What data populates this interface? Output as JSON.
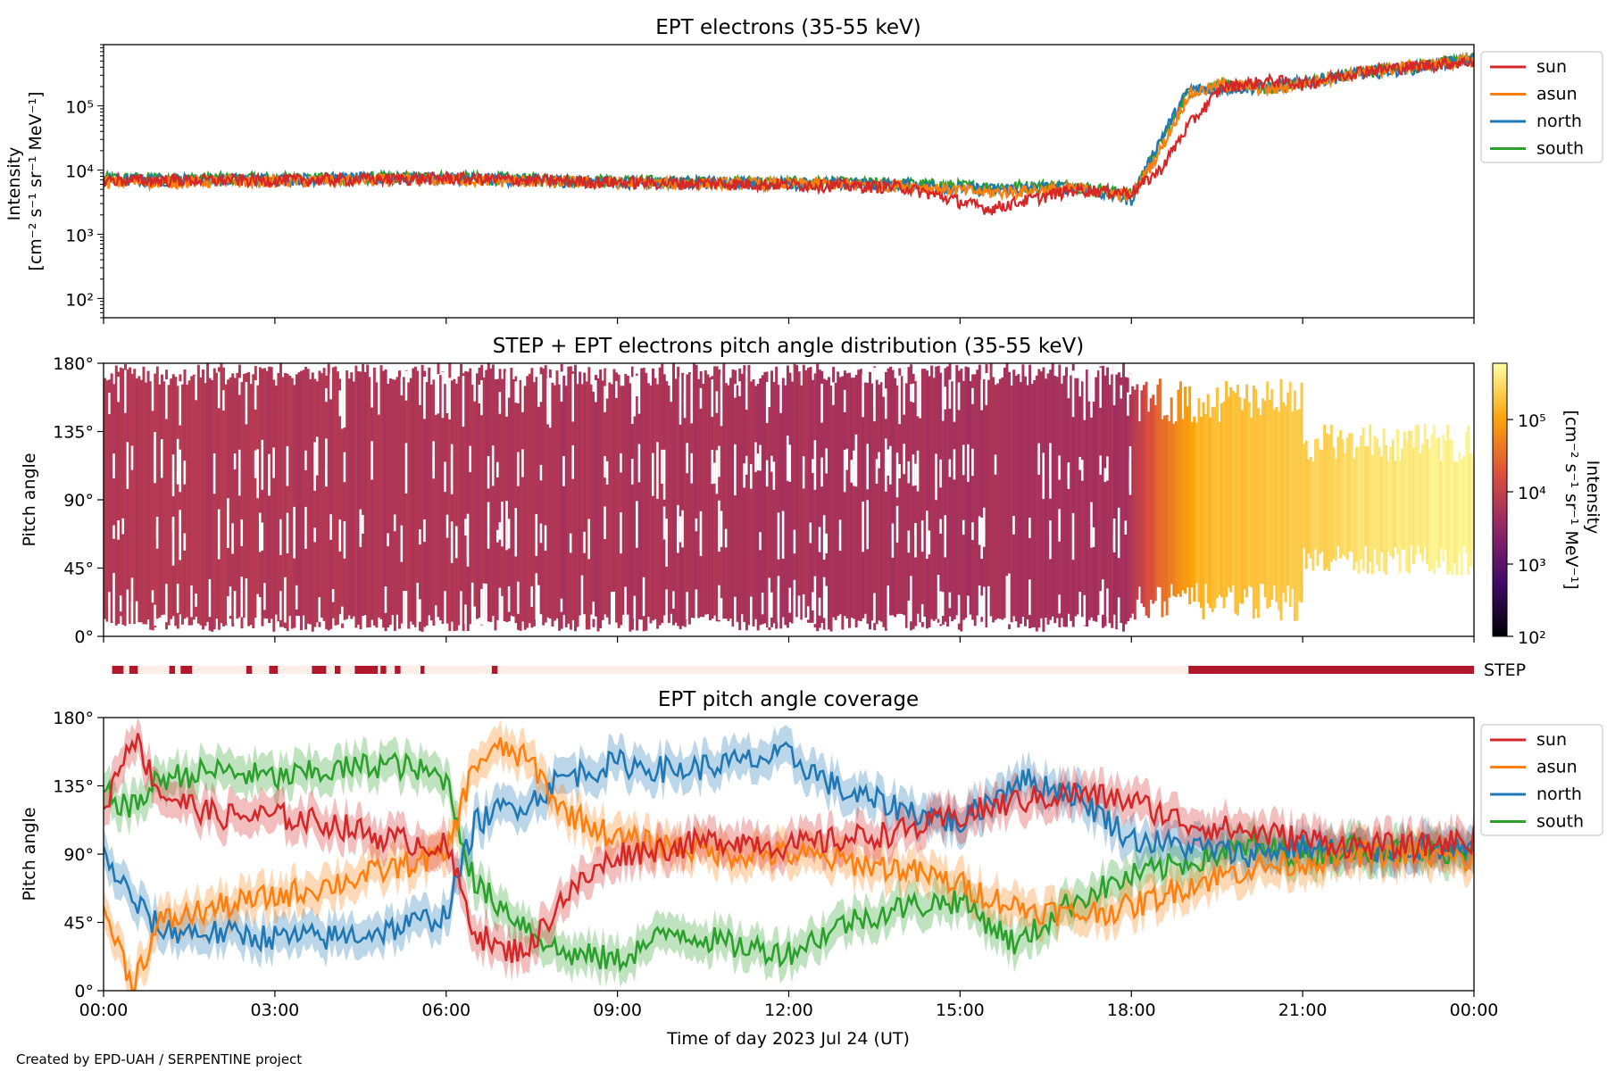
{
  "figure": {
    "footer": "Created by EPD-UAH / SERPENTINE project",
    "xlabel": "Time of day 2023 Jul 24 (UT)",
    "x_ticks": [
      "00:00",
      "03:00",
      "06:00",
      "09:00",
      "12:00",
      "15:00",
      "18:00",
      "21:00",
      "00:00"
    ]
  },
  "colors": {
    "sun": "#d62728",
    "asun": "#ff7f0e",
    "north": "#1f77b4",
    "south": "#2ca02c",
    "step_bar": "#b2182b",
    "step_bg": "#fdeee8"
  },
  "chart_data": [
    {
      "type": "line",
      "title": "EPT electrons (35-55 keV)",
      "ylabel_line1": "Intensity",
      "ylabel_line2": "[cm⁻² s⁻¹ sr⁻¹ MeV⁻¹]",
      "yscale": "log",
      "ylim": [
        50,
        900000
      ],
      "y_ticks": [
        "10²",
        "10³",
        "10⁴",
        "10⁵"
      ],
      "xlim": [
        0,
        24
      ],
      "legend_position": "right",
      "legend": [
        "sun",
        "asun",
        "north",
        "south"
      ],
      "series": [
        {
          "name": "sun",
          "x": [
            0,
            3,
            6,
            9,
            12,
            14,
            15.5,
            17,
            18,
            18.5,
            19,
            19.6,
            20.5,
            21,
            22,
            23,
            24
          ],
          "values": [
            7000,
            7000,
            7500,
            6500,
            6000,
            5500,
            2500,
            5000,
            4500,
            10000,
            50000,
            200000,
            250000,
            220000,
            350000,
            420000,
            500000
          ]
        },
        {
          "name": "asun",
          "x": [
            0,
            3,
            6,
            9,
            12,
            14,
            15.5,
            17,
            18,
            18.5,
            19,
            19.6,
            20.5,
            21,
            22,
            23,
            24
          ],
          "values": [
            6500,
            6800,
            7200,
            6300,
            6200,
            5800,
            4500,
            5200,
            4000,
            20000,
            150000,
            220000,
            180000,
            230000,
            330000,
            430000,
            520000
          ]
        },
        {
          "name": "north",
          "x": [
            0,
            3,
            6,
            9,
            12,
            14,
            15.5,
            17,
            18,
            18.5,
            19,
            19.6,
            20.5,
            21,
            22,
            23,
            24
          ],
          "values": [
            7000,
            7300,
            7600,
            6600,
            6300,
            6000,
            5000,
            5500,
            3500,
            30000,
            180000,
            190000,
            200000,
            240000,
            320000,
            400000,
            550000
          ]
        },
        {
          "name": "south",
          "x": [
            0,
            3,
            6,
            9,
            12,
            14,
            15.5,
            17,
            18,
            18.5,
            19,
            19.6,
            20.5,
            21,
            22,
            23,
            24
          ],
          "values": [
            7500,
            7500,
            7800,
            6800,
            6500,
            6200,
            5500,
            5800,
            4200,
            25000,
            170000,
            210000,
            190000,
            235000,
            340000,
            420000,
            560000
          ]
        }
      ]
    },
    {
      "type": "heatmap",
      "title": "STEP + EPT electrons pitch angle distribution (35-55 keV)",
      "ylabel": "Pitch angle",
      "ylim": [
        0,
        180
      ],
      "y_ticks": [
        "0°",
        "45°",
        "90°",
        "135°",
        "180°"
      ],
      "xlim": [
        0,
        24
      ],
      "colorbar": {
        "label_line1": "Intensity",
        "label_line2": "[cm⁻² s⁻¹ sr⁻¹ MeV⁻¹]",
        "scale": "log",
        "range": [
          100,
          600000
        ],
        "ticks": [
          "10²",
          "10³",
          "10⁴",
          "10⁵"
        ]
      },
      "intensity_profile": {
        "x": [
          0,
          17.9,
          18.5,
          19.2,
          20,
          21,
          22,
          24
        ],
        "values": [
          7000,
          5000,
          30000,
          150000,
          180000,
          220000,
          330000,
          500000
        ]
      }
    },
    {
      "type": "bar",
      "label": "STEP",
      "xlim": [
        0,
        24
      ],
      "step_intervals": [
        [
          0.15,
          0.35
        ],
        [
          0.45,
          0.6
        ],
        [
          1.15,
          1.25
        ],
        [
          1.35,
          1.55
        ],
        [
          2.5,
          2.6
        ],
        [
          2.9,
          3.05
        ],
        [
          3.65,
          3.9
        ],
        [
          4.05,
          4.15
        ],
        [
          4.4,
          4.8
        ],
        [
          4.85,
          4.95
        ],
        [
          5.1,
          5.2
        ],
        [
          5.55,
          5.62
        ],
        [
          6.8,
          6.9
        ],
        [
          19.0,
          24.0
        ]
      ]
    },
    {
      "type": "line",
      "title": "EPT pitch angle coverage",
      "ylabel": "Pitch angle",
      "ylim": [
        0,
        180
      ],
      "y_ticks": [
        "0°",
        "45°",
        "90°",
        "135°",
        "180°"
      ],
      "xlim": [
        0,
        24
      ],
      "legend_position": "right",
      "legend": [
        "sun",
        "asun",
        "north",
        "south"
      ],
      "band_halfwidth_deg": 12,
      "series": [
        {
          "name": "sun",
          "x": [
            0,
            0.5,
            1,
            2,
            3,
            4,
            5,
            6,
            6.5,
            7,
            7.5,
            8,
            9,
            10,
            11,
            12,
            13,
            14,
            15,
            16,
            17,
            18,
            19,
            20,
            21,
            22,
            23,
            24
          ],
          "values": [
            120,
            170,
            130,
            115,
            115,
            110,
            100,
            95,
            40,
            25,
            30,
            60,
            90,
            95,
            100,
            95,
            100,
            105,
            115,
            125,
            130,
            125,
            110,
            105,
            100,
            95,
            95,
            100
          ]
        },
        {
          "name": "asun",
          "x": [
            0,
            0.5,
            1,
            2,
            3,
            4,
            5,
            6,
            6.5,
            7,
            7.5,
            8,
            9,
            10,
            11,
            12,
            13,
            14,
            15,
            16,
            17,
            18,
            19,
            20,
            21,
            22,
            23,
            24
          ],
          "values": [
            55,
            5,
            45,
            55,
            62,
            70,
            80,
            90,
            150,
            160,
            150,
            120,
            100,
            95,
            90,
            90,
            85,
            80,
            70,
            55,
            50,
            55,
            70,
            80,
            85,
            90,
            90,
            85
          ]
        },
        {
          "name": "north",
          "x": [
            0,
            0.5,
            1,
            2,
            3,
            4,
            5,
            6,
            6.5,
            7,
            7.5,
            8,
            9,
            10,
            11,
            12,
            13,
            14,
            15,
            16,
            17,
            18,
            19,
            20,
            21,
            22,
            23,
            24
          ],
          "values": [
            90,
            60,
            40,
            38,
            35,
            35,
            40,
            50,
            110,
            120,
            125,
            140,
            150,
            145,
            150,
            155,
            130,
            120,
            110,
            140,
            130,
            100,
            95,
            90,
            95,
            90,
            95,
            90
          ]
        },
        {
          "name": "south",
          "x": [
            0,
            0.5,
            1,
            2,
            3,
            4,
            5,
            6,
            6.5,
            7,
            7.5,
            8,
            9,
            10,
            11,
            12,
            13,
            14,
            15,
            16,
            17,
            18,
            19,
            20,
            21,
            22,
            23,
            24
          ],
          "values": [
            130,
            120,
            140,
            145,
            140,
            145,
            150,
            140,
            70,
            55,
            40,
            25,
            20,
            40,
            30,
            25,
            45,
            55,
            60,
            30,
            60,
            75,
            85,
            95,
            90,
            95,
            90,
            95
          ]
        }
      ]
    }
  ]
}
